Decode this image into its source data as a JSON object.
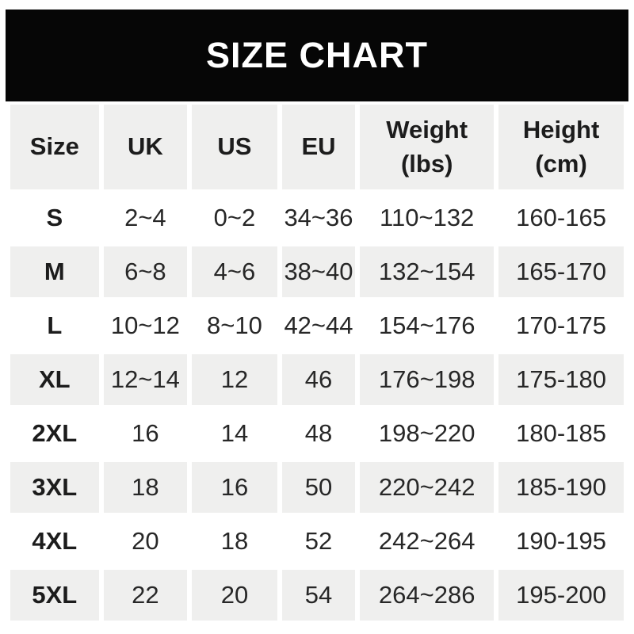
{
  "banner": {
    "title": "SIZE CHART"
  },
  "colors": {
    "banner_bg": "#060606",
    "banner_text": "#ffffff",
    "row_alt_bg": "#efefee",
    "text_dark": "#1c1c1c",
    "text_body": "#272727"
  },
  "table": {
    "headers": [
      {
        "label": "Size"
      },
      {
        "label": "UK"
      },
      {
        "label": "US"
      },
      {
        "label": "EU"
      },
      {
        "label": "Weight",
        "unit": "(lbs)"
      },
      {
        "label": "Height",
        "unit": "(cm)"
      }
    ],
    "rows": [
      {
        "size": "S",
        "uk": "2~4",
        "us": "0~2",
        "eu": "34~36",
        "weight": "110~132",
        "height": "160-165"
      },
      {
        "size": "M",
        "uk": "6~8",
        "us": "4~6",
        "eu": "38~40",
        "weight": "132~154",
        "height": "165-170"
      },
      {
        "size": "L",
        "uk": "10~12",
        "us": "8~10",
        "eu": "42~44",
        "weight": "154~176",
        "height": "170-175"
      },
      {
        "size": "XL",
        "uk": "12~14",
        "us": "12",
        "eu": "46",
        "weight": "176~198",
        "height": "175-180"
      },
      {
        "size": "2XL",
        "uk": "16",
        "us": "14",
        "eu": "48",
        "weight": "198~220",
        "height": "180-185"
      },
      {
        "size": "3XL",
        "uk": "18",
        "us": "16",
        "eu": "50",
        "weight": "220~242",
        "height": "185-190"
      },
      {
        "size": "4XL",
        "uk": "20",
        "us": "18",
        "eu": "52",
        "weight": "242~264",
        "height": "190-195"
      },
      {
        "size": "5XL",
        "uk": "22",
        "us": "20",
        "eu": "54",
        "weight": "264~286",
        "height": "195-200"
      }
    ]
  },
  "chart_data": {
    "type": "table",
    "title": "SIZE CHART",
    "columns": [
      "Size",
      "UK",
      "US",
      "EU",
      "Weight (lbs)",
      "Height (cm)"
    ],
    "rows": [
      [
        "S",
        "2~4",
        "0~2",
        "34~36",
        "110~132",
        "160-165"
      ],
      [
        "M",
        "6~8",
        "4~6",
        "38~40",
        "132~154",
        "165-170"
      ],
      [
        "L",
        "10~12",
        "8~10",
        "42~44",
        "154~176",
        "170-175"
      ],
      [
        "XL",
        "12~14",
        "12",
        "46",
        "176~198",
        "175-180"
      ],
      [
        "2XL",
        "16",
        "14",
        "48",
        "198~220",
        "180-185"
      ],
      [
        "3XL",
        "18",
        "16",
        "50",
        "220~242",
        "185-190"
      ],
      [
        "4XL",
        "20",
        "18",
        "52",
        "242~264",
        "190-195"
      ],
      [
        "5XL",
        "22",
        "20",
        "54",
        "264~286",
        "195-200"
      ]
    ]
  }
}
